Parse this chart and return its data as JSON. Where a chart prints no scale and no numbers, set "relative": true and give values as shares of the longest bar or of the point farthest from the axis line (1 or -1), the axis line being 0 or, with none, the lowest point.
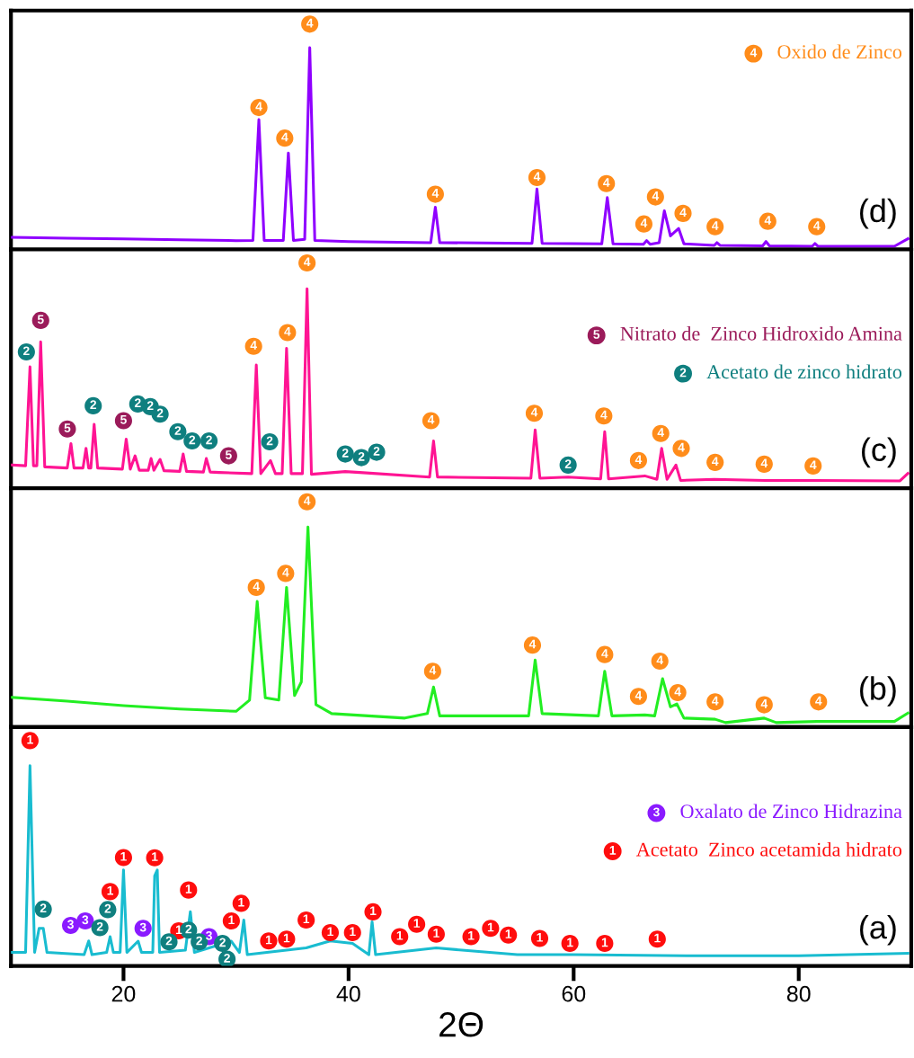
{
  "chart_data": [
    {
      "type": "line",
      "relative": true,
      "xlim": [
        10,
        90
      ],
      "xticks": [
        20,
        40,
        60,
        80
      ],
      "tick_labels": false,
      "legend": "top right",
      "annotations": [
        "(d)",
        {
          "text": "4",
          "x": 32.03,
          "y": 0.63
        },
        {
          "text": "4",
          "x": 34.33,
          "y": 0.494
        },
        {
          "text": "4",
          "x": 36.55,
          "y": 1.0
        },
        {
          "text": "4",
          "x": 47.71,
          "y": 0.245
        },
        {
          "text": "4",
          "x": 56.74,
          "y": 0.319
        },
        {
          "text": "4",
          "x": 62.91,
          "y": 0.292
        },
        {
          "text": "4",
          "x": 67.27,
          "y": 0.233
        },
        {
          "text": "4",
          "x": 66.24,
          "y": 0.113
        },
        {
          "text": "4",
          "x": 69.72,
          "y": 0.16
        },
        {
          "text": "4",
          "x": 72.57,
          "y": 0.101
        },
        {
          "text": "4",
          "x": 77.25,
          "y": 0.125
        },
        {
          "text": "4",
          "x": 81.6,
          "y": 0.101
        }
      ],
      "series": [
        {
          "color": "#8f00ff",
          "x": [
            10.1,
            15,
            20,
            25,
            30,
            31.5,
            32.03,
            32.5,
            34.2,
            34.65,
            35.1,
            36.1,
            36.55,
            37.0,
            40,
            47.3,
            47.71,
            48.1,
            56.3,
            56.74,
            57.2,
            62.5,
            62.99,
            63.5,
            66.2,
            66.48,
            66.8,
            67.6,
            68.06,
            68.6,
            69.33,
            69.8,
            72.5,
            72.73,
            73,
            76.8,
            77.09,
            77.4,
            81.2,
            81.44,
            81.7,
            88.5,
            89.7
          ],
          "values": [
            0.054,
            0.05,
            0.047,
            0.043,
            0.039,
            0.04,
            0.576,
            0.04,
            0.04,
            0.428,
            0.04,
            0.045,
            0.895,
            0.04,
            0.035,
            0.03,
            0.187,
            0.03,
            0.027,
            0.268,
            0.027,
            0.025,
            0.23,
            0.025,
            0.023,
            0.039,
            0.023,
            0.03,
            0.171,
            0.06,
            0.093,
            0.025,
            0.018,
            0.03,
            0.018,
            0.016,
            0.035,
            0.016,
            0.014,
            0.026,
            0.014,
            0.014,
            0.047
          ]
        },
        {
          "type": "scatter",
          "name": "Oxido de Zinco",
          "color": "#ff8c1a",
          "x": [
            32.03,
            34.33,
            36.55,
            47.71,
            56.74,
            62.91,
            67.27,
            66.24,
            69.72,
            72.57,
            77.25,
            81.6
          ],
          "values": [
            0.63,
            0.494,
            1.0,
            0.245,
            0.319,
            0.292,
            0.233,
            0.113,
            0.16,
            0.101,
            0.125,
            0.101
          ]
        }
      ]
    },
    {
      "type": "line",
      "relative": true,
      "xlim": [
        10,
        90
      ],
      "xticks": [
        20,
        40,
        60,
        80
      ],
      "tick_labels": false,
      "legend": "right",
      "annotations": [
        "(c)",
        {
          "text": "5",
          "x": 12.64,
          "y": 0.745
        },
        {
          "text": "5",
          "x": 15.01,
          "y": 0.263
        },
        {
          "text": "5",
          "x": 20.0,
          "y": 0.3
        },
        {
          "text": "5",
          "x": 29.34,
          "y": 0.144
        },
        {
          "text": "2",
          "x": 11.37,
          "y": 0.605
        },
        {
          "text": "2",
          "x": 17.31,
          "y": 0.366
        },
        {
          "text": "2",
          "x": 21.27,
          "y": 0.374
        },
        {
          "text": "2",
          "x": 22.38,
          "y": 0.362
        },
        {
          "text": "2",
          "x": 23.25,
          "y": 0.329
        },
        {
          "text": "2",
          "x": 24.83,
          "y": 0.251
        },
        {
          "text": "2",
          "x": 26.1,
          "y": 0.21
        },
        {
          "text": "2",
          "x": 27.6,
          "y": 0.21
        },
        {
          "text": "2",
          "x": 32.99,
          "y": 0.206
        },
        {
          "text": "2",
          "x": 39.71,
          "y": 0.152
        },
        {
          "text": "2",
          "x": 41.14,
          "y": 0.136
        },
        {
          "text": "2",
          "x": 42.49,
          "y": 0.16
        },
        {
          "text": "2",
          "x": 59.51,
          "y": 0.103
        },
        {
          "text": "4",
          "x": 31.56,
          "y": 0.63
        },
        {
          "text": "4",
          "x": 34.57,
          "y": 0.691
        },
        {
          "text": "4",
          "x": 36.31,
          "y": 1.0
        },
        {
          "text": "4",
          "x": 47.32,
          "y": 0.3
        },
        {
          "text": "4",
          "x": 56.5,
          "y": 0.333
        },
        {
          "text": "4",
          "x": 62.68,
          "y": 0.321
        },
        {
          "text": "4",
          "x": 65.76,
          "y": 0.123
        },
        {
          "text": "4",
          "x": 67.74,
          "y": 0.243
        },
        {
          "text": "4",
          "x": 69.56,
          "y": 0.177
        },
        {
          "text": "4",
          "x": 72.57,
          "y": 0.115
        },
        {
          "text": "4",
          "x": 76.93,
          "y": 0.107
        },
        {
          "text": "4",
          "x": 81.28,
          "y": 0.099
        }
      ],
      "series": [
        {
          "color": "#ff1493",
          "x": [
            10.1,
            11.3,
            11.69,
            12.0,
            12.3,
            12.64,
            13.0,
            15.0,
            15.33,
            15.6,
            16.4,
            16.67,
            16.9,
            17.1,
            17.39,
            17.7,
            19.9,
            20.24,
            20.6,
            21.03,
            21.4,
            22.2,
            22.45,
            22.7,
            23.25,
            23.6,
            25.0,
            25.3,
            25.6,
            27.1,
            27.36,
            27.7,
            28.5,
            31.4,
            31.8,
            32.2,
            33.06,
            33.5,
            34.1,
            34.49,
            34.9,
            35.9,
            36.31,
            36.7,
            39.7,
            41.0,
            47.2,
            47.55,
            47.9,
            56.2,
            56.58,
            57.0,
            59.5,
            62.4,
            62.76,
            63.1,
            66.32,
            67.4,
            67.82,
            68.3,
            69.09,
            69.5,
            72.5,
            77.0,
            81.4,
            89.0,
            89.7
          ],
          "values": [
            0.103,
            0.1,
            0.539,
            0.1,
            0.1,
            0.65,
            0.095,
            0.09,
            0.198,
            0.09,
            0.09,
            0.177,
            0.09,
            0.09,
            0.284,
            0.09,
            0.085,
            0.218,
            0.085,
            0.144,
            0.08,
            0.08,
            0.132,
            0.08,
            0.128,
            0.078,
            0.075,
            0.152,
            0.075,
            0.072,
            0.132,
            0.072,
            0.07,
            0.065,
            0.547,
            0.065,
            0.123,
            0.065,
            0.065,
            0.621,
            0.065,
            0.065,
            0.885,
            0.062,
            0.074,
            0.07,
            0.05,
            0.21,
            0.05,
            0.045,
            0.259,
            0.045,
            0.05,
            0.042,
            0.251,
            0.042,
            0.055,
            0.04,
            0.177,
            0.04,
            0.103,
            0.035,
            0.04,
            0.035,
            0.035,
            0.033,
            0.066
          ]
        },
        {
          "type": "scatter",
          "name": "Nitrato de  Zinco Hidroxido Amina",
          "color": "#9b1b5a",
          "x": [
            12.64,
            15.01,
            20.0,
            29.34
          ],
          "values": [
            0.745,
            0.263,
            0.3,
            0.144
          ]
        },
        {
          "type": "scatter",
          "name": "Acetato de zinco hidrato",
          "color": "#0f7f7f",
          "x": [
            11.37,
            17.31,
            21.27,
            22.38,
            23.25,
            24.83,
            26.1,
            27.6,
            32.99,
            39.71,
            41.14,
            42.49,
            59.51
          ],
          "values": [
            0.605,
            0.366,
            0.374,
            0.362,
            0.329,
            0.251,
            0.21,
            0.21,
            0.206,
            0.152,
            0.136,
            0.16,
            0.103
          ]
        },
        {
          "type": "scatter",
          "color": "#ff8c1a",
          "x": [
            31.56,
            34.57,
            36.31,
            47.32,
            56.5,
            62.68,
            65.76,
            67.74,
            69.56,
            72.57,
            76.93,
            81.28
          ],
          "values": [
            0.63,
            0.691,
            1.0,
            0.3,
            0.333,
            0.321,
            0.123,
            0.243,
            0.177,
            0.115,
            0.107,
            0.099
          ]
        }
      ]
    },
    {
      "type": "line",
      "relative": true,
      "xlim": [
        10,
        90
      ],
      "xticks": [
        20,
        40,
        60,
        80
      ],
      "tick_labels": false,
      "annotations": [
        "(b)",
        {
          "text": "4",
          "x": 31.8,
          "y": 0.62
        },
        {
          "text": "4",
          "x": 34.41,
          "y": 0.682
        },
        {
          "text": "4",
          "x": 36.31,
          "y": 1.0
        },
        {
          "text": "4",
          "x": 47.47,
          "y": 0.248
        },
        {
          "text": "4",
          "x": 56.34,
          "y": 0.364
        },
        {
          "text": "4",
          "x": 62.76,
          "y": 0.322
        },
        {
          "text": "4",
          "x": 65.76,
          "y": 0.136
        },
        {
          "text": "4",
          "x": 67.66,
          "y": 0.293
        },
        {
          "text": "4",
          "x": 69.25,
          "y": 0.153
        },
        {
          "text": "4",
          "x": 72.57,
          "y": 0.112
        },
        {
          "text": "4",
          "x": 76.93,
          "y": 0.099
        },
        {
          "text": "4",
          "x": 81.76,
          "y": 0.112
        }
      ],
      "series": [
        {
          "color": "#22ee22",
          "x": [
            10.1,
            15,
            20,
            25,
            30,
            31.2,
            31.88,
            32.6,
            33.8,
            34.49,
            35.2,
            35.8,
            36.39,
            37.1,
            38.5,
            45,
            47.0,
            47.55,
            48.1,
            56.0,
            56.58,
            57.2,
            62.2,
            62.76,
            63.4,
            66.32,
            67.2,
            67.9,
            68.6,
            69.17,
            69.8,
            72.57,
            73.5,
            76.93,
            78,
            81.6,
            88.5,
            89.7
          ],
          "values": [
            0.132,
            0.115,
            0.095,
            0.08,
            0.07,
            0.12,
            0.558,
            0.13,
            0.12,
            0.62,
            0.14,
            0.2,
            0.888,
            0.1,
            0.06,
            0.04,
            0.06,
            0.178,
            0.05,
            0.05,
            0.298,
            0.06,
            0.05,
            0.248,
            0.05,
            0.054,
            0.05,
            0.215,
            0.09,
            0.103,
            0.04,
            0.035,
            0.02,
            0.04,
            0.02,
            0.025,
            0.025,
            0.062
          ]
        },
        {
          "type": "scatter",
          "color": "#ff8c1a",
          "x": [
            31.8,
            34.41,
            36.31,
            47.47,
            56.34,
            62.76,
            65.76,
            67.66,
            69.25,
            72.57,
            76.93,
            81.76
          ],
          "values": [
            0.62,
            0.682,
            1.0,
            0.248,
            0.364,
            0.322,
            0.136,
            0.293,
            0.153,
            0.112,
            0.099,
            0.112
          ]
        }
      ]
    },
    {
      "type": "line",
      "relative": true,
      "xlim": [
        10,
        90
      ],
      "xticks": [
        20,
        40,
        60,
        80
      ],
      "tick_labels": "x",
      "xlabel": "2Θ",
      "legend": "right",
      "annotations": [
        "(a)",
        {
          "text": "3",
          "x": 15.3,
          "y": 0.18
        },
        {
          "text": "3",
          "x": 16.6,
          "y": 0.2
        },
        {
          "text": "3",
          "x": 21.74,
          "y": 0.167
        },
        {
          "text": "3",
          "x": 27.6,
          "y": 0.13
        },
        {
          "text": "1",
          "x": 11.69,
          "y": 1.0
        },
        {
          "text": "1",
          "x": 20.0,
          "y": 0.481
        },
        {
          "text": "1",
          "x": 22.77,
          "y": 0.48
        },
        {
          "text": "1",
          "x": 25.78,
          "y": 0.337
        },
        {
          "text": "1",
          "x": 30.45,
          "y": 0.278
        },
        {
          "text": "1",
          "x": 18.81,
          "y": 0.33
        },
        {
          "text": "1",
          "x": 24.91,
          "y": 0.156
        },
        {
          "text": "1",
          "x": 29.58,
          "y": 0.2
        },
        {
          "text": "1",
          "x": 32.9,
          "y": 0.111
        },
        {
          "text": "1",
          "x": 34.49,
          "y": 0.119
        },
        {
          "text": "1",
          "x": 36.23,
          "y": 0.204
        },
        {
          "text": "1",
          "x": 38.37,
          "y": 0.148
        },
        {
          "text": "1",
          "x": 40.35,
          "y": 0.148
        },
        {
          "text": "1",
          "x": 42.17,
          "y": 0.24
        },
        {
          "text": "1",
          "x": 44.54,
          "y": 0.13
        },
        {
          "text": "1",
          "x": 46.05,
          "y": 0.185
        },
        {
          "text": "1",
          "x": 47.79,
          "y": 0.141
        },
        {
          "text": "1",
          "x": 50.88,
          "y": 0.13
        },
        {
          "text": "1",
          "x": 52.62,
          "y": 0.167
        },
        {
          "text": "1",
          "x": 54.2,
          "y": 0.137
        },
        {
          "text": "1",
          "x": 56.98,
          "y": 0.122
        },
        {
          "text": "1",
          "x": 59.67,
          "y": 0.1
        },
        {
          "text": "1",
          "x": 62.76,
          "y": 0.1
        },
        {
          "text": "1",
          "x": 67.43,
          "y": 0.119
        },
        {
          "text": "2",
          "x": 12.87,
          "y": 0.252
        },
        {
          "text": "2",
          "x": 17.9,
          "y": 0.17
        },
        {
          "text": "2",
          "x": 18.6,
          "y": 0.25
        },
        {
          "text": "2",
          "x": 24.04,
          "y": 0.107
        },
        {
          "text": "2",
          "x": 25.78,
          "y": 0.159
        },
        {
          "text": "2",
          "x": 26.73,
          "y": 0.107
        },
        {
          "text": "2",
          "x": 28.8,
          "y": 0.1
        },
        {
          "text": "2",
          "x": 29.2,
          "y": 0.03
        }
      ],
      "series": [
        {
          "color": "#19bcd0",
          "x": [
            10.1,
            11.3,
            11.69,
            12.1,
            12.5,
            12.87,
            13.2,
            16.5,
            16.91,
            17.2,
            18.5,
            18.81,
            19.1,
            19.7,
            20.0,
            20.3,
            21.3,
            21.6,
            22.6,
            22.77,
            23.0,
            23.2,
            25.5,
            25.94,
            26.3,
            29.58,
            30.3,
            30.69,
            31.0,
            36.23,
            38.37,
            40.35,
            41.8,
            42.09,
            42.4,
            47.79,
            55,
            60,
            70,
            80,
            89.7
          ],
          "values": [
            0.06,
            0.06,
            0.889,
            0.06,
            0.167,
            0.167,
            0.06,
            0.05,
            0.111,
            0.05,
            0.06,
            0.13,
            0.06,
            0.06,
            0.426,
            0.06,
            0.11,
            0.06,
            0.06,
            0.4,
            0.426,
            0.06,
            0.07,
            0.241,
            0.06,
            0.11,
            0.06,
            0.204,
            0.05,
            0.08,
            0.111,
            0.1,
            0.05,
            0.196,
            0.05,
            0.08,
            0.05,
            0.05,
            0.045,
            0.045,
            0.056
          ]
        },
        {
          "type": "scatter",
          "name": "Oxalato de Zinco Hidrazina",
          "color": "#8a1aff",
          "x": [
            15.3,
            16.6,
            21.74,
            27.6
          ],
          "values": [
            0.18,
            0.2,
            0.167,
            0.13
          ]
        },
        {
          "type": "scatter",
          "name": "Acetato  Zinco acetamida hidrato",
          "color": "#ff0d0d",
          "x": [
            11.69,
            20.0,
            22.77,
            25.78,
            30.45,
            18.81,
            24.91,
            29.58,
            32.9,
            34.49,
            36.23,
            38.37,
            40.35,
            42.17,
            44.54,
            46.05,
            47.79,
            50.88,
            52.62,
            54.2,
            56.98,
            59.67,
            62.76,
            67.43
          ],
          "values": [
            1.0,
            0.481,
            0.48,
            0.337,
            0.278,
            0.33,
            0.156,
            0.2,
            0.111,
            0.119,
            0.204,
            0.148,
            0.148,
            0.24,
            0.13,
            0.185,
            0.141,
            0.13,
            0.167,
            0.137,
            0.122,
            0.1,
            0.1,
            0.119
          ]
        },
        {
          "type": "scatter",
          "color": "#0f7f7f",
          "x": [
            12.87,
            17.9,
            18.6,
            24.04,
            25.78,
            26.73,
            28.8,
            29.2
          ],
          "values": [
            0.252,
            0.17,
            0.25,
            0.107,
            0.159,
            0.107,
            0.1,
            0.03
          ]
        }
      ]
    }
  ]
}
